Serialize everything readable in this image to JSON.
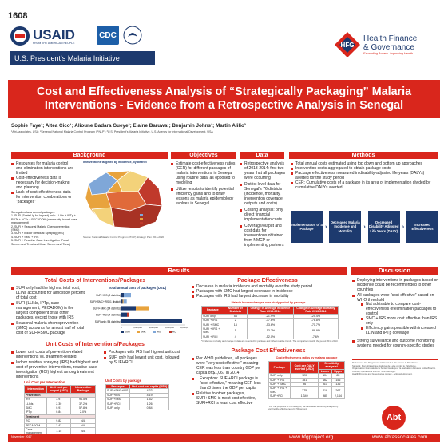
{
  "poster_number": "1608",
  "logos": {
    "usaid": "USAID",
    "usaid_tagline": "FROM THE AMERICAN PEOPLE",
    "cdc": "CDC",
    "pmi": "U.S. President's Malaria Initiative",
    "hfg_line1": "Health Finance",
    "hfg_line2": "& Governance",
    "hfg_tag": "Expanding Access. Improving Health.",
    "abt": "Abt"
  },
  "title": "Cost and Effectiveness Analysis of “Strategically Packaging” Malaria Interventions - Evidence from a Retrospective Analysis in Senegal",
  "authors": "Sophie Faye¹; Altea Cico¹; Alioune Badara Gueye²; Elaine Baruwa¹; Benjamin Johns¹; Martin Alilio³",
  "affiliations": "¹Abt Associates, USA; ²Senegal National Malaria Control Program (PNLP); ³U.S. President's Malaria Initiative, U.S. Agency for International Development, USA",
  "background": {
    "header": "Background",
    "bullets": [
      "Resources for malaria control and elimination interventions are limited",
      "Cost-effectiveness data is necessary for decision-making and planning",
      "Lack of cost-effectiveness data for intervention combinations or “packages”"
    ],
    "packages_title": "Senegal malaria control packages:",
    "packages": [
      "1. SUFI (Scale Up for Impact) only: LLINs + IPTp + RDTs + ACTs + PECADOM (community-based case management)",
      "2. SUFI + Seasonal Malaria Chemoprevention (SMC)",
      "3. SUFI + Indoor Residual Spraying (IRS)",
      "4. SUFI + SMC + IRS",
      "5. SUFI + Reactive Case Investigation (Focal Screen and Treat and Mass Screen and Treat)"
    ],
    "map_title": "Interventions targeted by incidence, by district",
    "map_source": "Source: National Malaria Control Program (PNLP) Strategic Plan 2016-2020"
  },
  "objectives": {
    "header": "Objectives",
    "bullets": [
      "Estimate cost-effectiveness ratios (CER) for different packages of malaria interventions in Senegal using routine data, as opposed to modeling",
      "Utilize results to identify potential efficiency gains and to draw lessons as malaria epidemiology evolves in Senegal"
    ]
  },
  "data": {
    "header": "Data",
    "bullets": [
      "Retrospective analysis of 2013-2014: first two years that all packages were occurring",
      "District level data for Senegal's 76 districts (incidence, mortality, intervention coverage, outputs and costs)",
      "Costing analysis: only direct financial implementation costs",
      "Coverage/output and cost data for interventions obtained from NMCP or implementing partners"
    ]
  },
  "methods": {
    "header": "Methods",
    "bullets": [
      "Total annual costs estimated using top down and bottom up approaches",
      "Intervention costs aggregated to obtain package costs",
      "Package effectiveness measured in disability-adjusted life years (DALYs) averted for the study period",
      "CER: Cumulative costs of a package in its area of implementation divided by cumulative DALYs averted"
    ],
    "flow": [
      "Implementation of a Package",
      "Decreased Malaria Incidence and Mortality",
      "Decreased Disability Adjusted Life Years (DALY)",
      "Increased Effectiveness"
    ]
  },
  "results": {
    "header": "Results",
    "costs_title": "Total Costs of Interventions/Packages",
    "costs_bullets": [
      "SUFI only had the highest total cost; LLINs accounted for almost 80 percent of total cost",
      "SUFI (LLINs, IPTp, case management, PECADOM) is the largest component of all other packages, except those with IRS",
      "Seasonal malaria chemoprevention (SMC) accounts for almost half of total cost of SUFI+SMC package"
    ],
    "unit_title": "Unit Costs of Interventions/Packages",
    "unit_bullets_left": [
      "Lower unit costs of prevention-related interventions vs. treatment-related",
      "Indoor residual spraying (IRS) had highest unit cost of preventive interventions, reactive case investigation (RCI) highest among treatment interventions"
    ],
    "unit_bullets_right": [
      "Packages with IRS had highest unit cost",
      "SUFI only had lowest unit cost, followed by SUFI+RCI"
    ],
    "cost_table_title": "Unit Cost per Intervention",
    "cost_table_headers": [
      "Intervention",
      "Unit cost per output (USD)",
      "Intervention Package"
    ],
    "cost_table_rows": [
      [
        "Prevention",
        "",
        ""
      ],
      [
        "IRS",
        "3.97",
        "96.5%"
      ],
      [
        "LLINs",
        "2.30",
        "37.2%"
      ],
      [
        "SMC",
        "0.91",
        "57.8%"
      ],
      [
        "IPTp",
        "0.84",
        "2.0%"
      ],
      [
        "Treatment",
        "",
        ""
      ],
      [
        "RCI",
        "9.82",
        "N/A"
      ],
      [
        "PECADOM",
        "2.43",
        "N/A"
      ],
      [
        "Case management",
        "1.15",
        "N/A"
      ]
    ],
    "pkg_table_title": "Unit Costs by package",
    "pkg_table_headers": [
      "Packages",
      "Unit cost per capita (USD)"
    ],
    "pkg_table_rows": [
      [
        "SUFI+SMC+IRS",
        "4.33"
      ],
      [
        "SUFI+IRS",
        "4.19"
      ],
      [
        "SUFI+SMC",
        "1.52"
      ],
      [
        "SUFI+RCI",
        "1.26"
      ],
      [
        "SUFI only",
        "0.84"
      ]
    ],
    "effect_title": "Package Effectiveness",
    "effect_bullets": [
      "Decrease in malaria incidence and mortality over the study period",
      "Packages with SMC had largest decrease in incidence",
      "Packages with IRS had largest decrease in mortality"
    ],
    "effect_table_title": "Malaria burden changes over study period by package",
    "effect_table_headers": [
      "Package",
      "Number of Districts",
      "Change in Average Incidence Rate 2013-2014",
      "Change in Average Mortality Rate 2013-2014"
    ],
    "effect_table_rows": [
      [
        "SUFI only",
        "54",
        "-21.9%",
        "-25.4%"
      ],
      [
        "SUFI + IRS",
        "2",
        "-37.6%",
        "-78.8%"
      ],
      [
        "SUFI + SMC",
        "14",
        "-53.6%",
        "-71.7%"
      ],
      [
        "SUFI + IRS + SMC",
        "1",
        "-53.2%",
        "-88.9%"
      ],
      [
        "SUFI + RCI",
        "4",
        "-52.0%",
        "-7.6%"
      ]
    ],
    "effect_note": "*Incidence, mortality and change in data are reported by package and reflect relative trends. The comparison is with the period 2012-2013.",
    "ce_title": "Package Cost Effectiveness",
    "ce_bullets": [
      "Per WHO guidelines, all packages were “very cost effective,” meaning CER was less than country GDP per capita of $1,067 in 2014",
      "Exception: SUFI+RCI package is “cost effective,” meaning CER less than 3 times the GDP per capita",
      "Relative to other packages, SUFI+SMC is most cost effective, SUFI+RCI is least cost effective"
    ],
    "ce_table_title": "Cost effectiveness ratios by malaria package",
    "ce_table_headers": [
      "Package",
      "Cost per DALY averted (USD)",
      "Lower",
      "Upper"
    ],
    "ce_table_group": "Sensitivity analysis*",
    "ce_table_rows": [
      [
        "SUFI only",
        "120",
        "104",
        "85"
      ],
      [
        "SUFI + IRS",
        "181",
        "162",
        "156"
      ],
      [
        "SUFI + SMC",
        "96",
        "61",
        "136"
      ],
      [
        "SUFI + IRS + SMC",
        "275",
        "219",
        "267"
      ],
      [
        "SUFI+RCI",
        "1,349",
        "985",
        "2,144"
      ]
    ],
    "ce_note": "*For the purposes of this analysis, we calculated sensitivity analysis by varying the effectiveness by 50 percent."
  },
  "discussion": {
    "header": "Discussion",
    "bullets": [
      "Deploying interventions in packages based on incidence could be recommended to other countries",
      "All packages were “cost effective” based on WHO threshold"
    ],
    "sub_bullets": [
      "Not advisable to compare cost-effectiveness of elimination packages to control",
      "SMC + IRS more cost effective than IRS only",
      "Efficiency gains possible with increased LLIN and IPTp coverage"
    ],
    "last": "Strong surveillance and outcome monitoring systems needed for country-specific studies",
    "references": [
      "References list: Programme National de Lutte contre le Paludisme.",
      "Sénégal. Plan Stratégique National de Lutte contre le Paludisme.",
      "Organisation Mondiale de la Santé: Guide pour la réalisation d'études coût-efficacité.",
      "Country Operational Plan FY 2015 Senegal.",
      "Health Finance and Governance project - Acknowledgement."
    ]
  },
  "footer": {
    "left_small": "November 2017",
    "url_hfg": "www.hfgproject.org",
    "url_abt": "www.abtassociates.com"
  },
  "chart_data": {
    "type": "bar",
    "title": "Total annual cost of packages (USD)",
    "categories": [
      "SUFI+IRS (2 districts)",
      "SUFI+SMC+IRS (1 district)",
      "SUFI+SMC (14 districts)",
      "SUFI+RCI (4 districts)",
      "SUFI only (54 districts)"
    ],
    "series": [
      {
        "name": "SUFI",
        "color": "#1d3a6e",
        "values": [
          300000,
          150000,
          1800000,
          700000,
          7600000
        ]
      },
      {
        "name": "SMC",
        "color": "#e8a33d",
        "values": [
          0,
          120000,
          1600000,
          0,
          0
        ]
      },
      {
        "name": "IRS",
        "color": "#7fa7d8",
        "values": [
          900000,
          400000,
          0,
          0,
          0
        ]
      },
      {
        "name": "RCI",
        "color": "#c0392b",
        "values": [
          0,
          0,
          0,
          250000,
          0
        ]
      }
    ],
    "xticks": [
      "0",
      "1,000,000",
      "2,000,000",
      "3,000,000",
      "4,000,000",
      "5,000,000",
      "6,000,000",
      "7,000,000",
      "8,000,000"
    ],
    "xlim": [
      0,
      8000000
    ],
    "legend": "bottom"
  }
}
